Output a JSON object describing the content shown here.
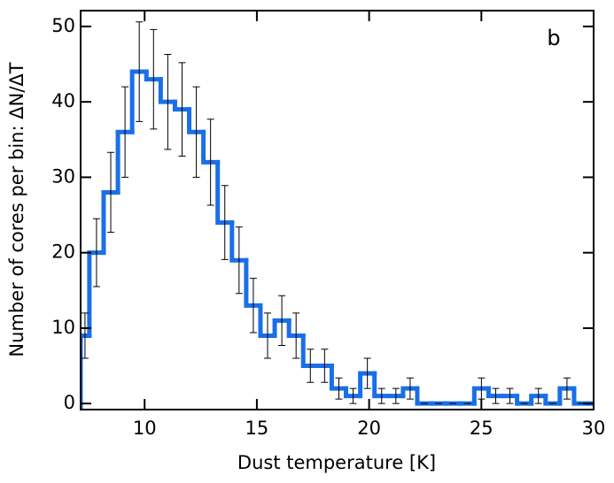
{
  "chart_data": {
    "type": "histogram",
    "annotation": "b",
    "xlabel": "Dust temperature [K]",
    "ylabel": "Number of cores per bin: ΔN/ΔT",
    "bins": [
      7.15,
      7.54,
      8.175,
      8.81,
      9.445,
      10.08,
      10.715,
      11.35,
      11.985,
      12.62,
      13.255,
      13.89,
      14.525,
      15.16,
      15.795,
      16.43,
      17.065,
      17.7,
      18.335,
      18.97,
      19.605,
      20.24,
      20.875,
      21.51,
      22.145,
      22.78,
      23.415,
      24.05,
      24.685,
      25.32,
      25.955,
      26.59,
      27.225,
      27.86,
      28.495,
      29.13,
      29.765,
      30.0
    ],
    "values": [
      9,
      20,
      28,
      36,
      44,
      43,
      40,
      39,
      36,
      32,
      24,
      19,
      13,
      9,
      11,
      9,
      5,
      5,
      2,
      1,
      4,
      1,
      1,
      2,
      0,
      0,
      0,
      0,
      2,
      1,
      1,
      0,
      1,
      0,
      2,
      0,
      0
    ],
    "errors": [
      3,
      4.5,
      5.3,
      6,
      6.6,
      6.6,
      6.3,
      6.2,
      6,
      5.7,
      4.9,
      4.4,
      3.6,
      3,
      3.3,
      3,
      2.2,
      2.2,
      1.4,
      1,
      2,
      1,
      1,
      1.4,
      0,
      0,
      0,
      0,
      1.4,
      1,
      1,
      0,
      1,
      0,
      1.4,
      0,
      0
    ],
    "color": "#1a6fe8",
    "xlim": [
      7.15,
      30
    ],
    "xticks": [
      10,
      15,
      20,
      25,
      30
    ],
    "ylim": [
      -0.8,
      52.1
    ],
    "yticks": [
      0,
      10,
      20,
      30,
      40,
      50
    ]
  }
}
